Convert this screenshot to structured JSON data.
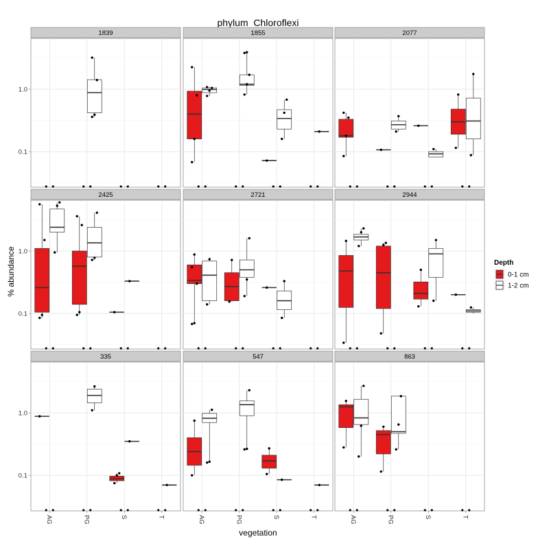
{
  "chart_data": {
    "type": "boxplot",
    "title": "phylum_Chloroflexi",
    "xlabel": "vegetation",
    "ylabel": "% abundance",
    "y_scale": "log10",
    "ylim": [
      0.027,
      6.5
    ],
    "y_ticks": [
      0.1,
      1.0
    ],
    "y_tick_labels": [
      "0.1",
      "1.0"
    ],
    "categories": [
      "AG",
      "PG",
      "S",
      "T"
    ],
    "legend": {
      "title": "Depth",
      "position": "right",
      "entries": [
        {
          "label": "0-1 cm",
          "color": "#e41a1c"
        },
        {
          "label": "1-2 cm",
          "color": "#ffffff"
        }
      ]
    },
    "panels": [
      {
        "title": "1839",
        "boxes": [
          {
            "cat": "PG",
            "depth": "1-2 cm",
            "q1": 0.42,
            "median": 0.88,
            "q3": 1.42,
            "low": 0.36,
            "high": 3.2,
            "points": [
              0.36,
              0.39,
              1.4,
              3.2
            ]
          }
        ]
      },
      {
        "title": "1855",
        "boxes": [
          {
            "cat": "AG",
            "depth": "0-1 cm",
            "q1": 0.16,
            "median": 0.4,
            "q3": 0.93,
            "low": 0.068,
            "high": 2.25,
            "points": [
              0.068,
              0.16,
              0.8,
              2.25
            ]
          },
          {
            "cat": "AG",
            "depth": "1-2 cm",
            "q1": 0.88,
            "median": 0.99,
            "q3": 1.05,
            "low": 0.78,
            "high": 1.08,
            "points": [
              0.78,
              0.95,
              1.05,
              1.08
            ]
          },
          {
            "cat": "PG",
            "depth": "1-2 cm",
            "q1": 1.15,
            "median": 1.2,
            "q3": 1.7,
            "low": 0.82,
            "high": 3.9,
            "points": [
              0.82,
              1.2,
              1.7,
              3.8,
              3.9
            ]
          },
          {
            "cat": "S",
            "depth": "0-1 cm",
            "q1": 0.072,
            "median": 0.072,
            "q3": 0.072,
            "low": 0.072,
            "high": 0.072,
            "points": [
              0.072
            ]
          },
          {
            "cat": "S",
            "depth": "1-2 cm",
            "q1": 0.23,
            "median": 0.34,
            "q3": 0.47,
            "low": 0.16,
            "high": 0.68,
            "points": [
              0.16,
              0.42,
              0.68
            ]
          },
          {
            "cat": "T",
            "depth": "1-2 cm",
            "q1": 0.21,
            "median": 0.21,
            "q3": 0.21,
            "low": 0.21,
            "high": 0.21,
            "points": [
              0.21
            ]
          }
        ]
      },
      {
        "title": "2077",
        "boxes": [
          {
            "cat": "AG",
            "depth": "0-1 cm",
            "q1": 0.17,
            "median": 0.18,
            "q3": 0.33,
            "low": 0.085,
            "high": 0.42,
            "points": [
              0.085,
              0.18,
              0.35,
              0.42
            ]
          },
          {
            "cat": "PG",
            "depth": "0-1 cm",
            "q1": 0.107,
            "median": 0.107,
            "q3": 0.107,
            "low": 0.107,
            "high": 0.107,
            "points": [
              0.107
            ]
          },
          {
            "cat": "PG",
            "depth": "1-2 cm",
            "q1": 0.23,
            "median": 0.27,
            "q3": 0.31,
            "low": 0.21,
            "high": 0.37,
            "points": [
              0.21,
              0.37
            ]
          },
          {
            "cat": "S",
            "depth": "0-1 cm",
            "q1": 0.26,
            "median": 0.26,
            "q3": 0.26,
            "low": 0.26,
            "high": 0.26,
            "points": [
              0.26
            ]
          },
          {
            "cat": "S",
            "depth": "1-2 cm",
            "q1": 0.082,
            "median": 0.092,
            "q3": 0.1,
            "low": 0.082,
            "high": 0.11,
            "points": [
              0.11
            ]
          },
          {
            "cat": "T",
            "depth": "0-1 cm",
            "q1": 0.19,
            "median": 0.3,
            "q3": 0.48,
            "low": 0.115,
            "high": 0.82,
            "points": [
              0.115,
              0.82
            ]
          },
          {
            "cat": "T",
            "depth": "1-2 cm",
            "q1": 0.16,
            "median": 0.31,
            "q3": 0.72,
            "low": 0.088,
            "high": 1.75,
            "points": [
              0.088,
              1.75
            ]
          }
        ]
      },
      {
        "title": "2425",
        "boxes": [
          {
            "cat": "AG",
            "depth": "0-1 cm",
            "q1": 0.105,
            "median": 0.26,
            "q3": 1.1,
            "low": 0.085,
            "high": 5.6,
            "points": [
              0.085,
              0.095,
              1.5,
              5.6
            ]
          },
          {
            "cat": "AG",
            "depth": "1-2 cm",
            "q1": 2.0,
            "median": 2.4,
            "q3": 4.7,
            "low": 0.95,
            "high": 6.0,
            "points": [
              0.95,
              5.3,
              6.0
            ]
          },
          {
            "cat": "PG",
            "depth": "0-1 cm",
            "q1": 0.14,
            "median": 0.57,
            "q3": 1.0,
            "low": 0.095,
            "high": 3.6,
            "points": [
              0.095,
              0.105,
              2.6,
              3.6
            ]
          },
          {
            "cat": "PG",
            "depth": "1-2 cm",
            "q1": 0.8,
            "median": 1.35,
            "q3": 2.4,
            "low": 0.72,
            "high": 4.1,
            "points": [
              0.72,
              0.78,
              4.1
            ]
          },
          {
            "cat": "S",
            "depth": "0-1 cm",
            "q1": 0.105,
            "median": 0.105,
            "q3": 0.105,
            "low": 0.105,
            "high": 0.105,
            "points": [
              0.105
            ]
          },
          {
            "cat": "S",
            "depth": "1-2 cm",
            "q1": 0.33,
            "median": 0.33,
            "q3": 0.33,
            "low": 0.33,
            "high": 0.33,
            "points": [
              0.33
            ]
          }
        ]
      },
      {
        "title": "2721",
        "boxes": [
          {
            "cat": "AG",
            "depth": "0-1 cm",
            "q1": 0.3,
            "median": 0.34,
            "q3": 0.6,
            "low": 0.068,
            "high": 0.88,
            "points": [
              0.068,
              0.07,
              0.3,
              0.55,
              0.88
            ]
          },
          {
            "cat": "AG",
            "depth": "1-2 cm",
            "q1": 0.16,
            "median": 0.41,
            "q3": 0.69,
            "low": 0.14,
            "high": 0.74,
            "points": [
              0.14,
              0.74
            ]
          },
          {
            "cat": "PG",
            "depth": "0-1 cm",
            "q1": 0.16,
            "median": 0.27,
            "q3": 0.45,
            "low": 0.155,
            "high": 0.72,
            "points": [
              0.155,
              0.72
            ]
          },
          {
            "cat": "PG",
            "depth": "1-2 cm",
            "q1": 0.38,
            "median": 0.5,
            "q3": 0.72,
            "low": 0.19,
            "high": 1.6,
            "points": [
              0.19,
              0.35,
              1.6
            ]
          },
          {
            "cat": "S",
            "depth": "0-1 cm",
            "q1": 0.26,
            "median": 0.26,
            "q3": 0.26,
            "low": 0.26,
            "high": 0.26,
            "points": [
              0.26
            ]
          },
          {
            "cat": "S",
            "depth": "1-2 cm",
            "q1": 0.115,
            "median": 0.16,
            "q3": 0.23,
            "low": 0.085,
            "high": 0.33,
            "points": [
              0.085,
              0.33
            ]
          }
        ]
      },
      {
        "title": "2944",
        "boxes": [
          {
            "cat": "AG",
            "depth": "0-1 cm",
            "q1": 0.125,
            "median": 0.48,
            "q3": 0.85,
            "low": 0.034,
            "high": 1.45,
            "points": [
              0.034,
              1.45
            ]
          },
          {
            "cat": "AG",
            "depth": "1-2 cm",
            "q1": 1.5,
            "median": 1.68,
            "q3": 1.85,
            "low": 1.2,
            "high": 2.3,
            "points": [
              1.2,
              2.0,
              2.3
            ]
          },
          {
            "cat": "PG",
            "depth": "0-1 cm",
            "q1": 0.12,
            "median": 0.45,
            "q3": 1.2,
            "low": 0.048,
            "high": 1.35,
            "points": [
              0.048,
              1.25,
              1.35
            ]
          },
          {
            "cat": "S",
            "depth": "0-1 cm",
            "q1": 0.17,
            "median": 0.21,
            "q3": 0.32,
            "low": 0.13,
            "high": 0.5,
            "points": [
              0.13,
              0.5
            ]
          },
          {
            "cat": "S",
            "depth": "1-2 cm",
            "q1": 0.38,
            "median": 0.9,
            "q3": 1.1,
            "low": 0.16,
            "high": 1.5,
            "points": [
              0.16,
              1.5
            ]
          },
          {
            "cat": "T",
            "depth": "0-1 cm",
            "q1": 0.2,
            "median": 0.2,
            "q3": 0.2,
            "low": 0.2,
            "high": 0.2,
            "points": [
              0.2
            ]
          },
          {
            "cat": "T",
            "depth": "1-2 cm",
            "q1": 0.105,
            "median": 0.11,
            "q3": 0.115,
            "low": 0.1,
            "high": 0.125,
            "points": [
              0.125
            ]
          }
        ]
      },
      {
        "title": "335",
        "boxes": [
          {
            "cat": "AG",
            "depth": "0-1 cm",
            "q1": 0.88,
            "median": 0.88,
            "q3": 0.88,
            "low": 0.88,
            "high": 0.88,
            "points": [
              0.88
            ]
          },
          {
            "cat": "PG",
            "depth": "1-2 cm",
            "q1": 1.45,
            "median": 1.9,
            "q3": 2.4,
            "low": 1.1,
            "high": 2.65,
            "points": [
              1.1,
              2.65
            ]
          },
          {
            "cat": "S",
            "depth": "0-1 cm",
            "q1": 0.082,
            "median": 0.088,
            "q3": 0.097,
            "low": 0.075,
            "high": 0.108,
            "points": [
              0.075,
              0.1,
              0.108
            ]
          },
          {
            "cat": "S",
            "depth": "1-2 cm",
            "q1": 0.35,
            "median": 0.35,
            "q3": 0.35,
            "low": 0.35,
            "high": 0.35,
            "points": [
              0.35
            ]
          },
          {
            "cat": "T",
            "depth": "1-2 cm",
            "q1": 0.07,
            "median": 0.07,
            "q3": 0.07,
            "low": 0.07,
            "high": 0.07,
            "points": [
              0.07
            ]
          }
        ]
      },
      {
        "title": "547",
        "boxes": [
          {
            "cat": "AG",
            "depth": "0-1 cm",
            "q1": 0.145,
            "median": 0.24,
            "q3": 0.4,
            "low": 0.1,
            "high": 0.75,
            "points": [
              0.1,
              0.75
            ]
          },
          {
            "cat": "AG",
            "depth": "1-2 cm",
            "q1": 0.7,
            "median": 0.82,
            "q3": 0.98,
            "low": 0.16,
            "high": 1.12,
            "points": [
              0.16,
              0.165,
              1.12
            ]
          },
          {
            "cat": "PG",
            "depth": "1-2 cm",
            "q1": 0.9,
            "median": 1.35,
            "q3": 1.55,
            "low": 0.26,
            "high": 2.3,
            "points": [
              0.26,
              0.265,
              2.3
            ]
          },
          {
            "cat": "S",
            "depth": "0-1 cm",
            "q1": 0.13,
            "median": 0.17,
            "q3": 0.21,
            "low": 0.105,
            "high": 0.27,
            "points": [
              0.105,
              0.27
            ]
          },
          {
            "cat": "S",
            "depth": "1-2 cm",
            "q1": 0.085,
            "median": 0.085,
            "q3": 0.085,
            "low": 0.085,
            "high": 0.085,
            "points": [
              0.085
            ]
          },
          {
            "cat": "T",
            "depth": "1-2 cm",
            "q1": 0.07,
            "median": 0.07,
            "q3": 0.07,
            "low": 0.07,
            "high": 0.07,
            "points": [
              0.07
            ]
          }
        ]
      },
      {
        "title": "863",
        "boxes": [
          {
            "cat": "AG",
            "depth": "0-1 cm",
            "q1": 0.58,
            "median": 1.25,
            "q3": 1.35,
            "low": 0.28,
            "high": 1.55,
            "points": [
              0.28,
              1.55
            ]
          },
          {
            "cat": "AG",
            "depth": "1-2 cm",
            "q1": 0.65,
            "median": 0.83,
            "q3": 1.65,
            "low": 0.2,
            "high": 2.7,
            "points": [
              0.2,
              0.62,
              2.7
            ]
          },
          {
            "cat": "PG",
            "depth": "0-1 cm",
            "q1": 0.22,
            "median": 0.45,
            "q3": 0.52,
            "low": 0.115,
            "high": 0.6,
            "points": [
              0.115,
              0.6
            ]
          },
          {
            "cat": "PG",
            "depth": "1-2 cm",
            "q1": 0.47,
            "median": 0.5,
            "q3": 1.85,
            "low": 0.26,
            "high": 1.85,
            "points": [
              0.26,
              0.65,
              1.85
            ]
          }
        ]
      }
    ]
  }
}
